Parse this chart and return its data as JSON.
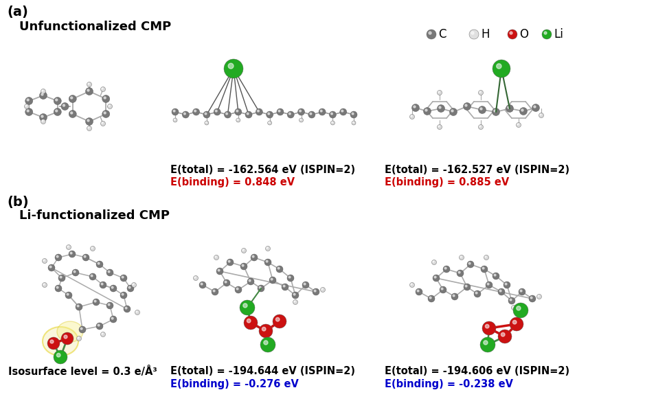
{
  "bg_color": "#ffffff",
  "label_a": "(a)",
  "label_b": "(b)",
  "title_a": "Unfunctionalized CMP",
  "title_b": "Li-functionalized CMP",
  "legend_items": [
    {
      "label": "C",
      "color": "#787878"
    },
    {
      "label": "H",
      "color": "#e0e0e0"
    },
    {
      "label": "O",
      "color": "#cc1111"
    },
    {
      "label": "Li",
      "color": "#22aa22"
    }
  ],
  "etotal_1": "E(total) = -162.564 eV (ISPIN=2)",
  "ebinding_1": "E(binding) = 0.848 eV",
  "ebinding_1_color": "#cc0000",
  "etotal_2": "E(total) = -162.527 eV (ISPIN=2)",
  "ebinding_2": "E(binding) = 0.885 eV",
  "ebinding_2_color": "#cc0000",
  "isosurface": "Isosurface level = 0.3 e/Å³",
  "etotal_3": "E(total) = -194.644 eV (ISPIN=2)",
  "ebinding_3": "E(binding) = -0.276 eV",
  "ebinding_3_color": "#0000cc",
  "etotal_4": "E(total) = -194.606 eV (ISPIN=2)",
  "ebinding_4": "E(binding) = -0.238 eV",
  "ebinding_4_color": "#0000cc",
  "label_fontsize": 14,
  "title_fontsize": 13,
  "text_fontsize": 10.5,
  "legend_fontsize": 12
}
